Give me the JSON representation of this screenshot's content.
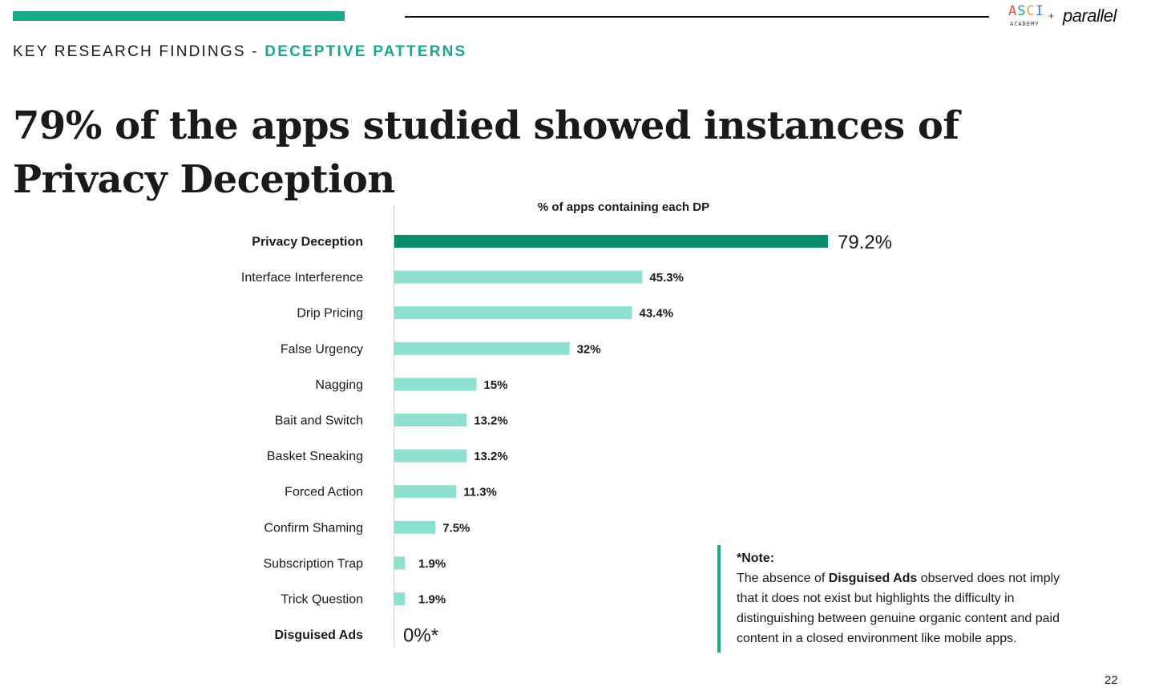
{
  "logo": {
    "asci_letters": [
      "A",
      "S",
      "C",
      "I"
    ],
    "academy": "ACADEMY",
    "plus": "+",
    "parallel": "parallel"
  },
  "header": {
    "eyebrow_part1": "KEY RESEARCH FINDINGS - ",
    "eyebrow_part2": "DECEPTIVE PATTERNS",
    "headline": "79% of the apps studied showed instances of Privacy Deception"
  },
  "colors": {
    "accent": "#17a98a",
    "highlight_bar": "#0b8a6c",
    "bar": "#8ee0cf"
  },
  "chart_data": {
    "type": "bar",
    "orientation": "horizontal",
    "title": "% of apps containing each DP",
    "categories": [
      "Privacy Deception",
      "Interface Interference",
      "Drip Pricing",
      "False Urgency",
      "Nagging",
      "Bait and Switch",
      "Basket Sneaking",
      "Forced Action",
      "Confirm Shaming",
      "Subscription Trap",
      "Trick Question",
      "Disguised Ads"
    ],
    "values": [
      79.2,
      45.3,
      43.4,
      32,
      15,
      13.2,
      13.2,
      11.3,
      7.5,
      1.9,
      1.9,
      0
    ],
    "value_labels": [
      "79.2%",
      "45.3%",
      "43.4%",
      "32%",
      "15%",
      "13.2%",
      "13.2%",
      "11.3%",
      "7.5%",
      "1.9%",
      "1.9%",
      "0%*"
    ],
    "emphasized_categories": [
      "Privacy Deception",
      "Disguised Ads"
    ],
    "highlighted_category": "Privacy Deception",
    "xlim": [
      0,
      79.2
    ],
    "grid": false,
    "legend": "none"
  },
  "note": {
    "title": "*Note:",
    "body_before": "The absence of ",
    "body_bold": "Disguised Ads",
    "body_after": " observed does not imply that it does not exist but highlights the difficulty in distinguishing between genuine organic content and paid content in a closed environment like mobile apps."
  },
  "page_number": "22"
}
